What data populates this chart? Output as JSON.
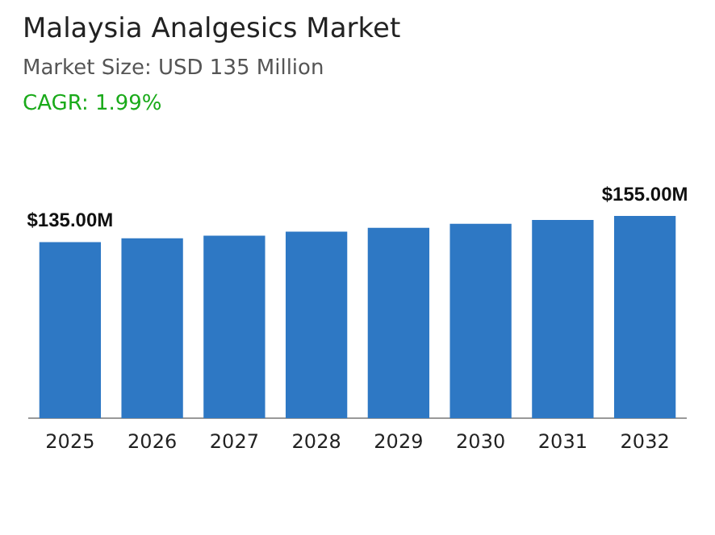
{
  "chart_data": {
    "type": "bar",
    "title": "Malaysia Analgesics Market",
    "subtitle": "Market Size: USD 135 Million",
    "annotations": [
      "CAGR: 1.99%"
    ],
    "categories": [
      "2025",
      "2026",
      "2027",
      "2028",
      "2029",
      "2030",
      "2031",
      "2032"
    ],
    "values": [
      135,
      138,
      140,
      143,
      146,
      149,
      152,
      155
    ],
    "value_labels": [
      "$135.00M",
      null,
      null,
      null,
      null,
      null,
      null,
      "$155.00M"
    ],
    "color": "#2e78c4",
    "grid": false,
    "legend": false
  }
}
